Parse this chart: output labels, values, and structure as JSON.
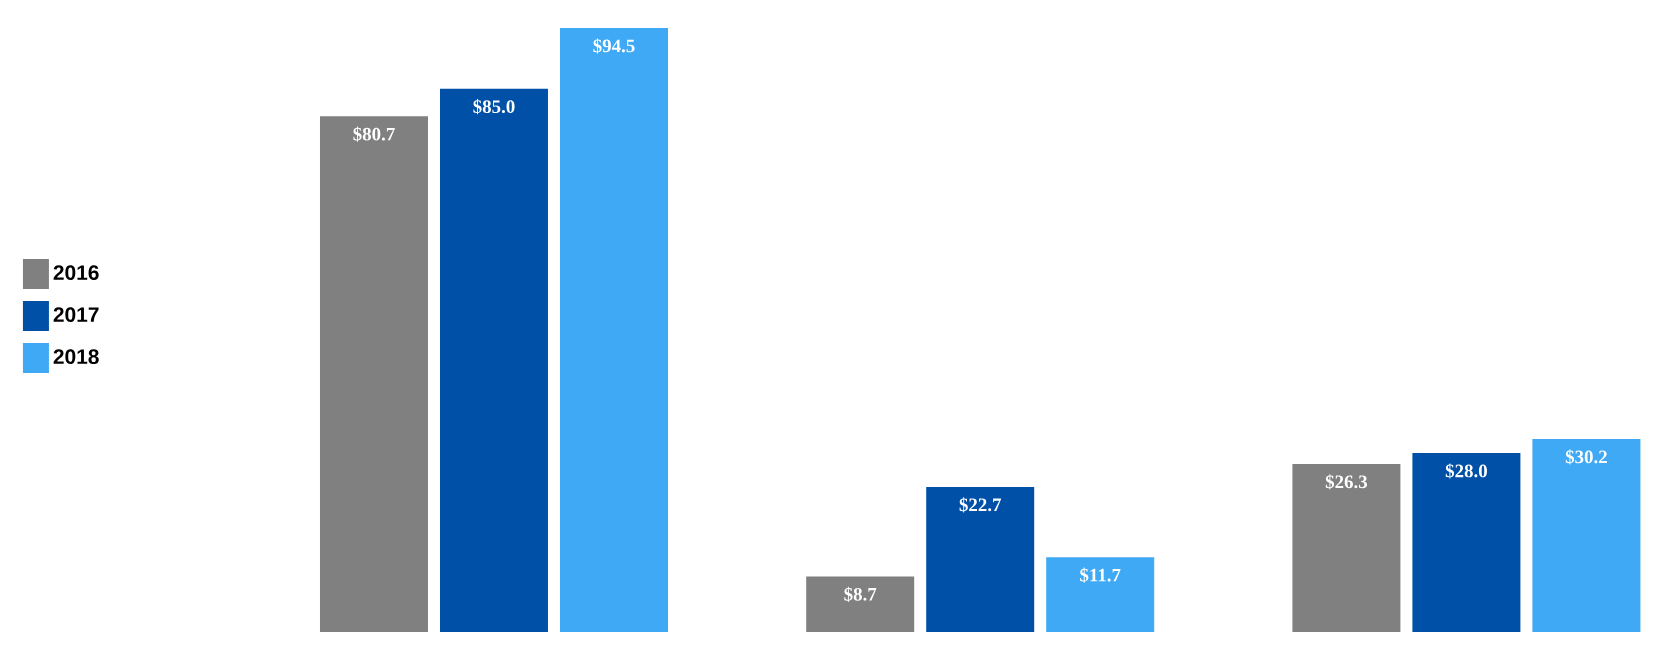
{
  "chart_data": {
    "type": "bar",
    "categories": [
      null,
      null,
      null
    ],
    "series": [
      {
        "name": "2016",
        "color": "#808080",
        "values": [
          80.7,
          8.7,
          26.3
        ],
        "value_labels": [
          "$80.7",
          "$8.7",
          "$26.3"
        ]
      },
      {
        "name": "2017",
        "color": "#0050a8",
        "values": [
          85.0,
          22.7,
          28.0
        ],
        "value_labels": [
          "$85.0",
          "$22.7",
          "$28.0"
        ]
      },
      {
        "name": "2018",
        "color": "#3fa9f5",
        "values": [
          94.5,
          11.7,
          30.2
        ],
        "value_labels": [
          "$94.5",
          "$11.7",
          "$30.2"
        ]
      }
    ],
    "legend": "left"
  }
}
